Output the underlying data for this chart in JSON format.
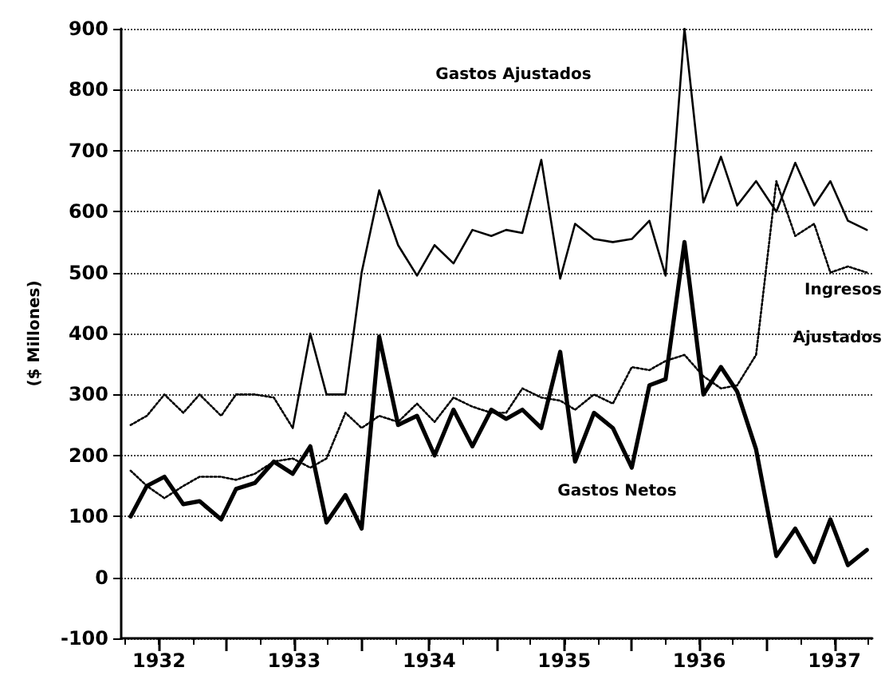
{
  "chart_data": {
    "type": "line",
    "ylabel": "($ Millones)",
    "x": [
      1932.29,
      1932.41,
      1932.54,
      1932.68,
      1932.8,
      1932.96,
      1933.07,
      1933.21,
      1933.35,
      1933.49,
      1933.62,
      1933.74,
      1933.88,
      1934,
      1934.13,
      1934.27,
      1934.41,
      1934.54,
      1934.68,
      1934.82,
      1934.96,
      1935.07,
      1935.19,
      1935.33,
      1935.47,
      1935.58,
      1935.72,
      1935.86,
      1936,
      1936.13,
      1936.25,
      1936.39,
      1936.53,
      1936.66,
      1936.78,
      1936.92,
      1937.07,
      1937.21,
      1937.35,
      1937.47,
      1937.6,
      1937.74
    ],
    "series": [
      {
        "color": "#000000",
        "line_style": "dotted",
        "values": [
          250,
          265,
          300,
          270,
          300,
          265,
          300,
          300,
          295,
          245,
          null,
          null,
          null,
          null,
          null,
          null,
          null,
          null,
          null,
          null,
          null,
          null,
          null,
          null,
          null,
          null,
          null,
          null,
          null,
          null,
          null,
          null,
          null,
          null,
          null,
          null,
          null,
          null,
          null,
          null,
          null,
          null
        ]
      },
      {
        "color": "#000000",
        "line_style": "solid",
        "values": [
          null,
          null,
          null,
          null,
          null,
          null,
          null,
          null,
          null,
          245,
          400,
          300,
          300,
          500,
          635,
          545,
          495,
          545,
          515,
          570,
          560,
          570,
          565,
          685,
          490,
          580,
          555,
          550,
          555,
          585,
          495,
          900,
          615,
          690,
          610,
          650,
          600,
          680,
          610,
          650,
          585,
          570
        ]
      },
      {
        "color": "#000000",
        "line_style": "dotted",
        "values": [
          175,
          150,
          130,
          150,
          165,
          165,
          160,
          170,
          190,
          195,
          180,
          195,
          270,
          245,
          265,
          255,
          285,
          255,
          295,
          280,
          270,
          270,
          310,
          295,
          290,
          275,
          300,
          285,
          345,
          340,
          355,
          365,
          330,
          310,
          315,
          365,
          650,
          560,
          580,
          500,
          510,
          500
        ]
      },
      {
        "color": "#000000",
        "line_style": "solid",
        "values": [
          100,
          150,
          165,
          120,
          125,
          95,
          145,
          155,
          190,
          170,
          215,
          90,
          135,
          80,
          395,
          250,
          265,
          200,
          275,
          215,
          275,
          260,
          275,
          245,
          370,
          190,
          270,
          245,
          180,
          315,
          325,
          550,
          300,
          345,
          305,
          210,
          35,
          80,
          25,
          95,
          20,
          45
        ]
      }
    ],
    "xlim": [
      1932.22,
      1937.78
    ],
    "xticks": [
      {
        "value": 1932.5,
        "label": "1932"
      },
      {
        "value": 1933,
        "label": null
      },
      {
        "value": 1933.5,
        "label": "1933"
      },
      {
        "value": 1934,
        "label": null
      },
      {
        "value": 1934.5,
        "label": "1934"
      },
      {
        "value": 1935,
        "label": null
      },
      {
        "value": 1935.5,
        "label": "1935"
      },
      {
        "value": 1936,
        "label": null
      },
      {
        "value": 1936.5,
        "label": "1936"
      },
      {
        "value": 1937,
        "label": null
      },
      {
        "value": 1937.5,
        "label": "1937"
      }
    ],
    "ylim": [
      -100,
      900
    ],
    "yticks": [
      -100,
      0,
      100,
      200,
      300,
      400,
      500,
      600,
      700,
      800,
      900
    ],
    "grid": "y",
    "marker": "none",
    "annotations": [
      "Gastos Ajustados",
      "Ingresos",
      "Ajustados",
      "Gastos Netos"
    ]
  }
}
